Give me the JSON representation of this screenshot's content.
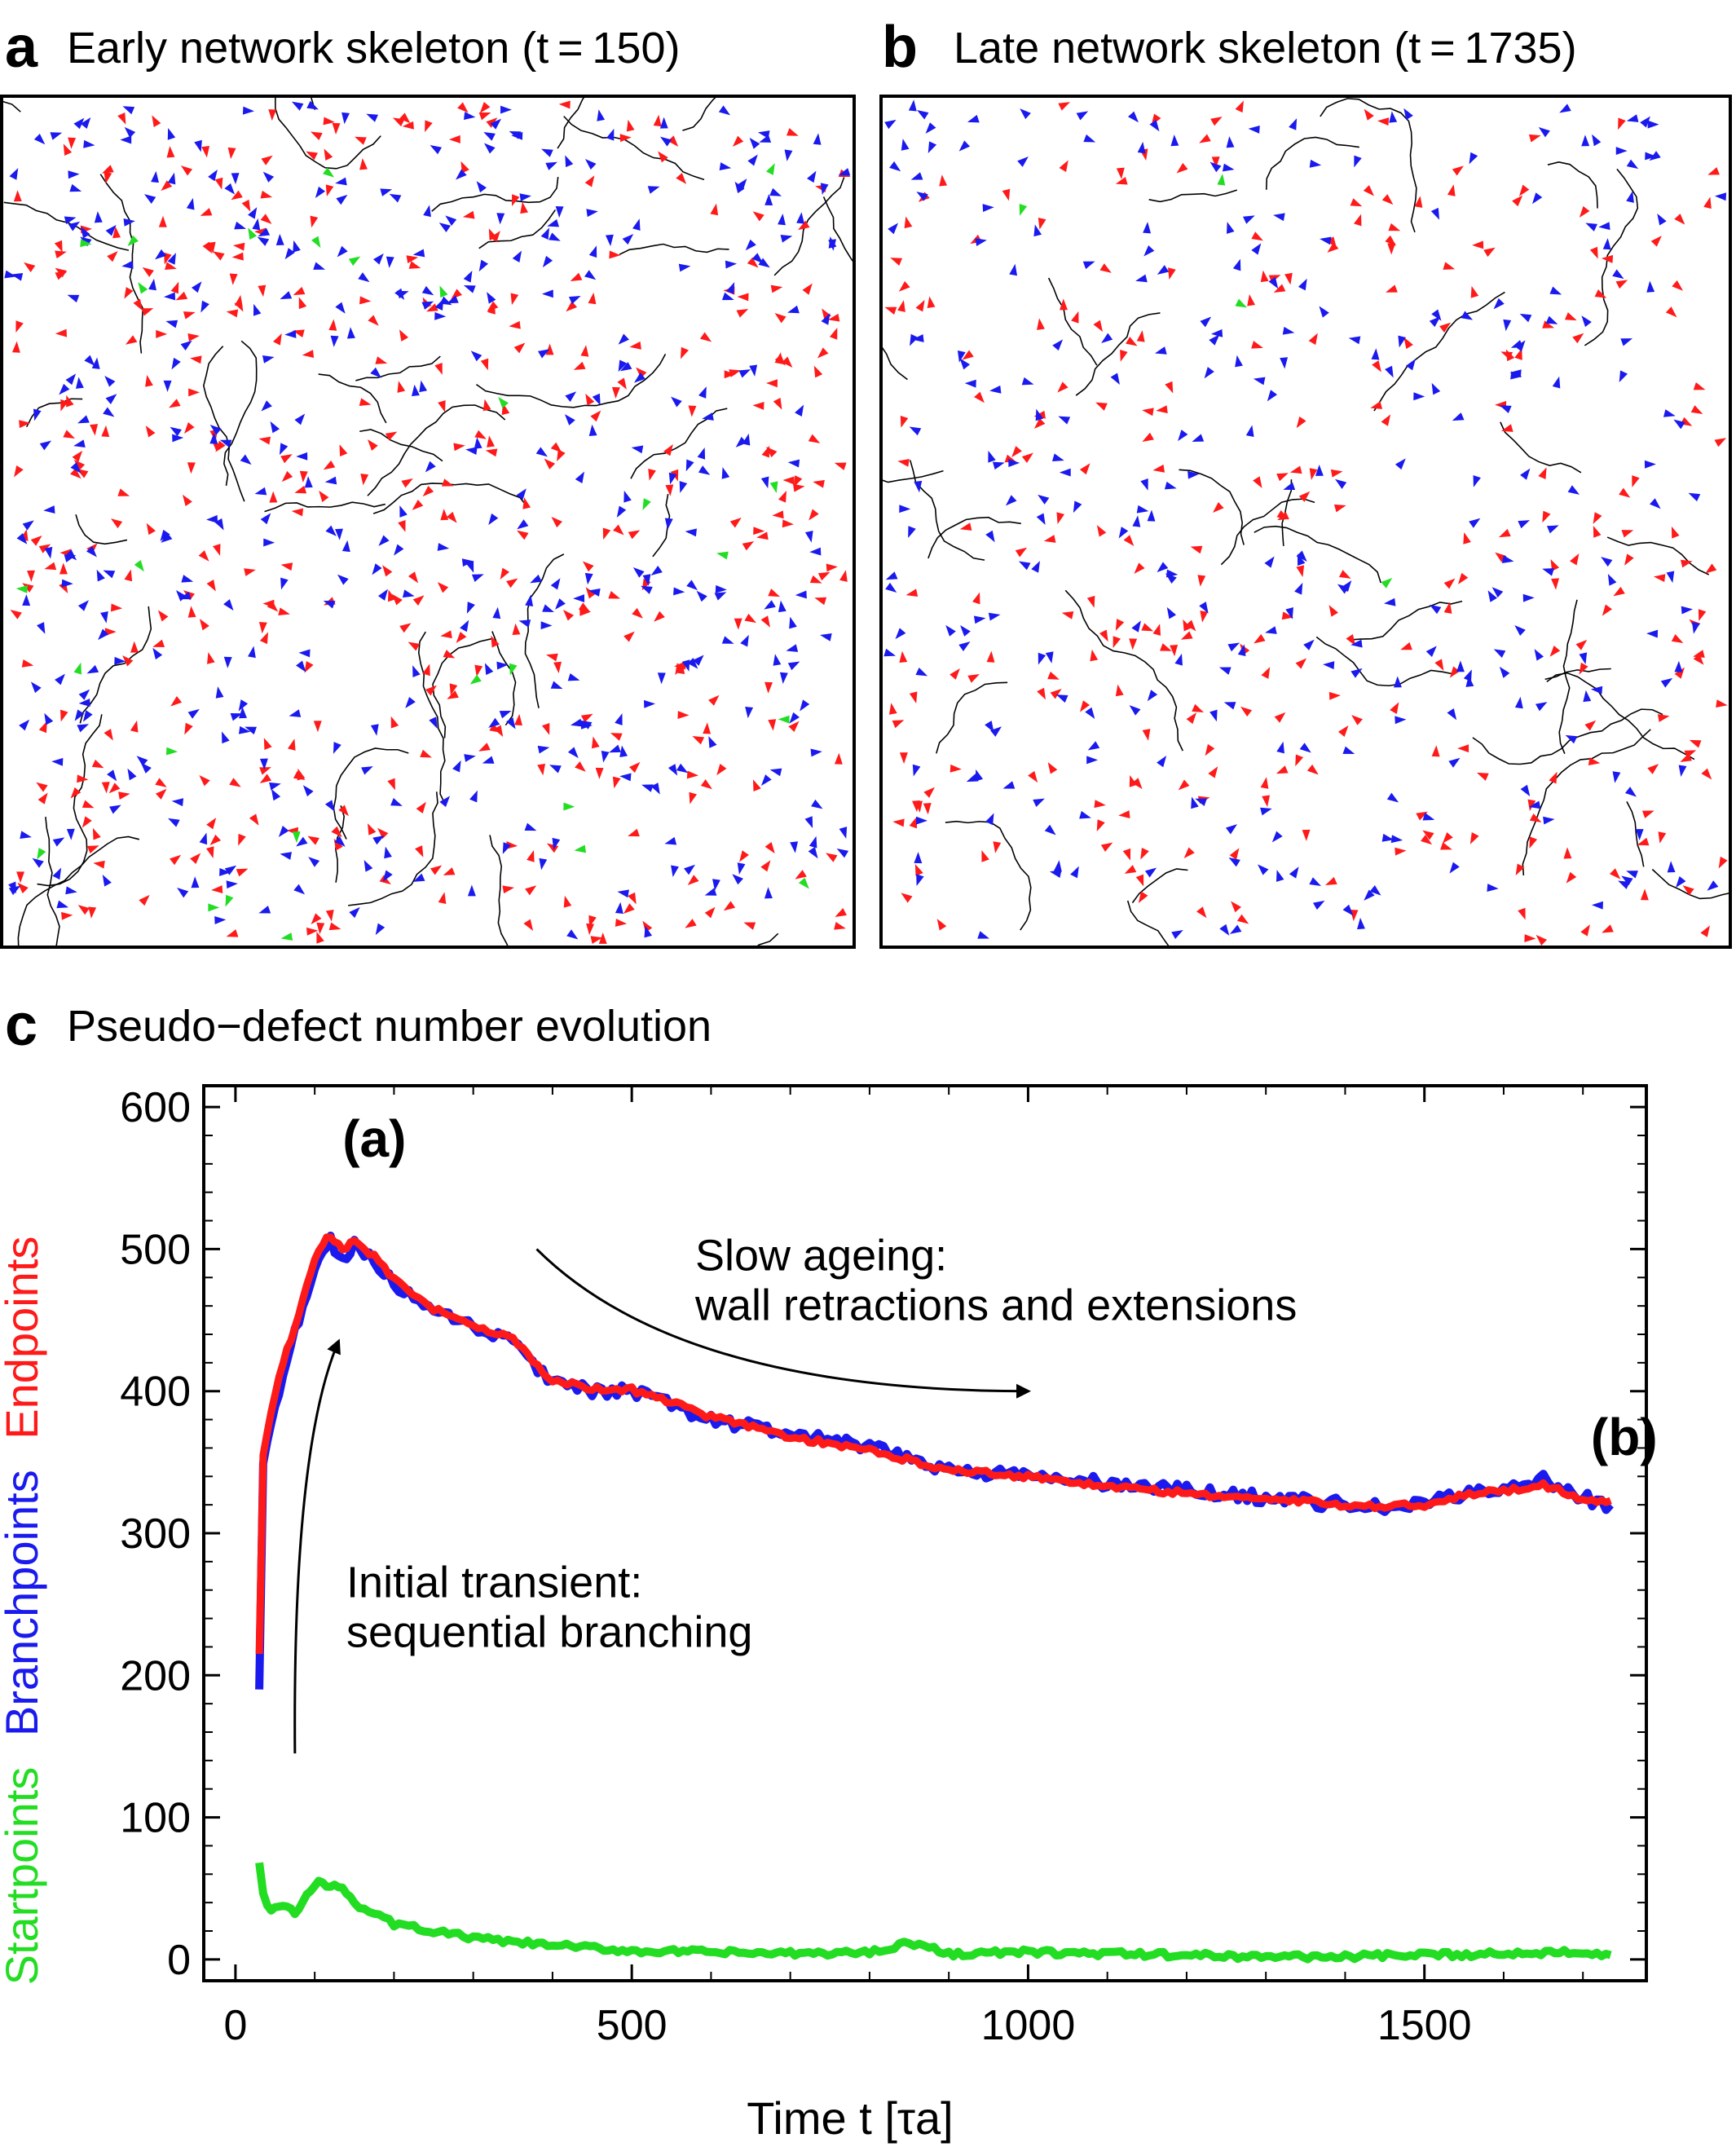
{
  "panel_a": {
    "letter": "a",
    "title": "Early network skeleton (t = 150)"
  },
  "panel_b": {
    "letter": "b",
    "title": "Late network skeleton (t = 1735)"
  },
  "panel_c": {
    "letter": "c",
    "title": "Pseudo−defect number evolution"
  },
  "colors": {
    "startpoints": "#22dd22",
    "branchpoints": "#1a1aee",
    "endpoints": "#ff1a1a",
    "walls": "#000000"
  },
  "chart_data": {
    "type": "line",
    "title": "Pseudo−defect number evolution",
    "xlabel": "Time t [τa]",
    "ylabel_parts": [
      "Startpoints",
      "Branchpoints",
      "Endpoints"
    ],
    "xlim": [
      -40,
      1780
    ],
    "ylim": [
      -15,
      615
    ],
    "x_ticks": [
      0,
      500,
      1000,
      1500
    ],
    "y_ticks": [
      0,
      100,
      200,
      300,
      400,
      500,
      600
    ],
    "series": [
      {
        "name": "Startpoints",
        "color": "#22dd22",
        "x": [
          30,
          35,
          45,
          60,
          75,
          90,
          105,
          120,
          135,
          150,
          175,
          200,
          250,
          300,
          350,
          400,
          500,
          600,
          700,
          800,
          850,
          900,
          1000,
          1100,
          1200,
          1300,
          1400,
          1500,
          1600,
          1700,
          1735
        ],
        "y": [
          68,
          45,
          35,
          38,
          32,
          45,
          55,
          50,
          52,
          40,
          32,
          25,
          20,
          15,
          12,
          10,
          6,
          5,
          4,
          5,
          12,
          4,
          5,
          4,
          3,
          2,
          2,
          3,
          4,
          6,
          3
        ]
      },
      {
        "name": "Branchpoints",
        "color": "#1a1aee",
        "x": [
          30,
          35,
          45,
          60,
          75,
          90,
          105,
          120,
          135,
          150,
          175,
          200,
          250,
          300,
          350,
          400,
          450,
          500,
          550,
          600,
          700,
          800,
          900,
          1000,
          1100,
          1200,
          1300,
          1400,
          1450,
          1500,
          1550,
          1600,
          1650,
          1700,
          1735
        ],
        "y": [
          190,
          350,
          380,
          410,
          440,
          470,
          495,
          505,
          490,
          505,
          490,
          475,
          455,
          445,
          435,
          405,
          400,
          400,
          390,
          380,
          370,
          360,
          345,
          340,
          335,
          330,
          325,
          320,
          318,
          320,
          328,
          332,
          338,
          325,
          320
        ]
      },
      {
        "name": "Endpoints",
        "color": "#ff1a1a",
        "x": [
          30,
          35,
          45,
          60,
          75,
          90,
          105,
          120,
          135,
          150,
          175,
          200,
          250,
          300,
          350,
          400,
          450,
          500,
          550,
          600,
          700,
          800,
          900,
          1000,
          1100,
          1200,
          1300,
          1400,
          1450,
          1500,
          1550,
          1600,
          1650,
          1700,
          1735
        ],
        "y": [
          215,
          355,
          385,
          420,
          445,
          475,
          500,
          510,
          500,
          505,
          495,
          478,
          458,
          447,
          437,
          407,
          402,
          401,
          392,
          382,
          368,
          358,
          345,
          340,
          333,
          328,
          324,
          320,
          319,
          320,
          327,
          330,
          334,
          324,
          323
        ]
      }
    ],
    "annotations": [
      {
        "id": "label_a",
        "text": "(a)",
        "at": [
          135,
          565
        ]
      },
      {
        "id": "label_b",
        "text": "(b)",
        "at": [
          1710,
          355
        ]
      },
      {
        "id": "slow_1",
        "text": "Slow ageing:",
        "at": [
          580,
          485
        ]
      },
      {
        "id": "slow_2",
        "text": "wall retractions and extensions",
        "at": [
          580,
          450
        ]
      },
      {
        "id": "init_1",
        "text": "Initial transient:",
        "at": [
          140,
          255
        ]
      },
      {
        "id": "init_2",
        "text": "sequential branching",
        "at": [
          140,
          220
        ]
      }
    ]
  }
}
